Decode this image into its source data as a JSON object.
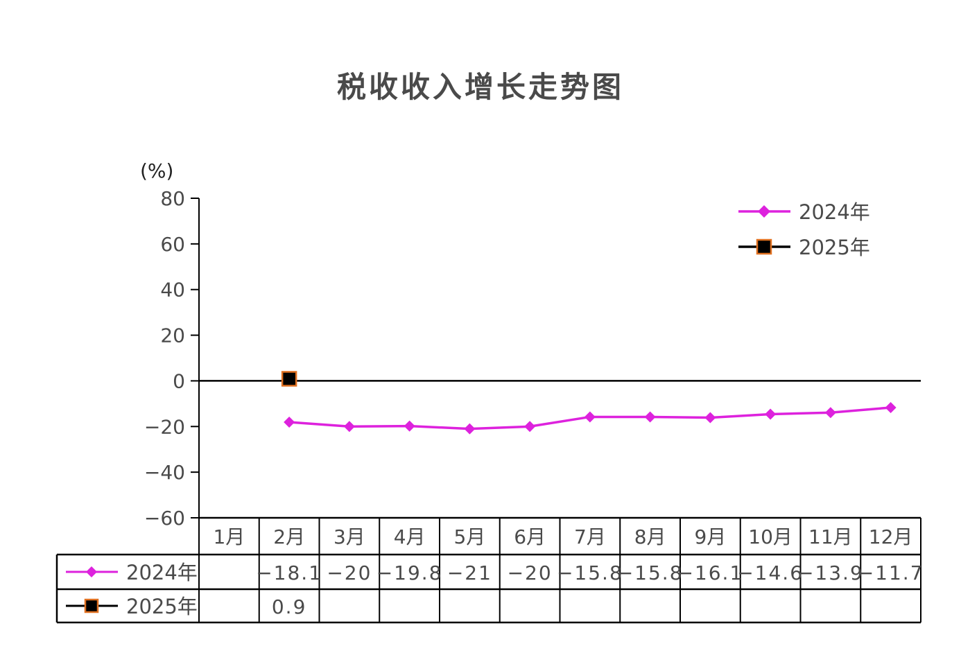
{
  "chart_data": {
    "type": "line",
    "title": "税收收入增长走势图",
    "ylabel": "(%)",
    "ylim": [
      -60,
      80
    ],
    "yticks": [
      "80",
      "60",
      "40",
      "20",
      "0",
      "−20",
      "−40",
      "−60"
    ],
    "categories": [
      "1月",
      "2月",
      "3月",
      "4月",
      "5月",
      "6月",
      "7月",
      "8月",
      "9月",
      "10月",
      "11月",
      "12月"
    ],
    "series": [
      {
        "name": "2024年",
        "color": "#dd22dd",
        "marker": "diamond",
        "values": [
          null,
          -18.1,
          -20,
          -19.8,
          -21,
          -20,
          -15.8,
          -15.8,
          -16.1,
          -14.6,
          -13.9,
          -11.7
        ],
        "labels": [
          "",
          "−18.1",
          "−20",
          "−19.8",
          "−21",
          "−20",
          "−15.8",
          "−15.8",
          "−16.1",
          "−14.6",
          "−13.9",
          "−11.7"
        ]
      },
      {
        "name": "2025年",
        "color": "#000000",
        "marker_fill": "#000000",
        "marker_edge": "#e07020",
        "marker": "square",
        "values": [
          null,
          0.9,
          null,
          null,
          null,
          null,
          null,
          null,
          null,
          null,
          null,
          null
        ],
        "labels": [
          "",
          "0.9",
          "",
          "",
          "",
          "",
          "",
          "",
          "",
          "",
          "",
          ""
        ]
      }
    ],
    "legend_position": "top-right",
    "data_table": true
  }
}
